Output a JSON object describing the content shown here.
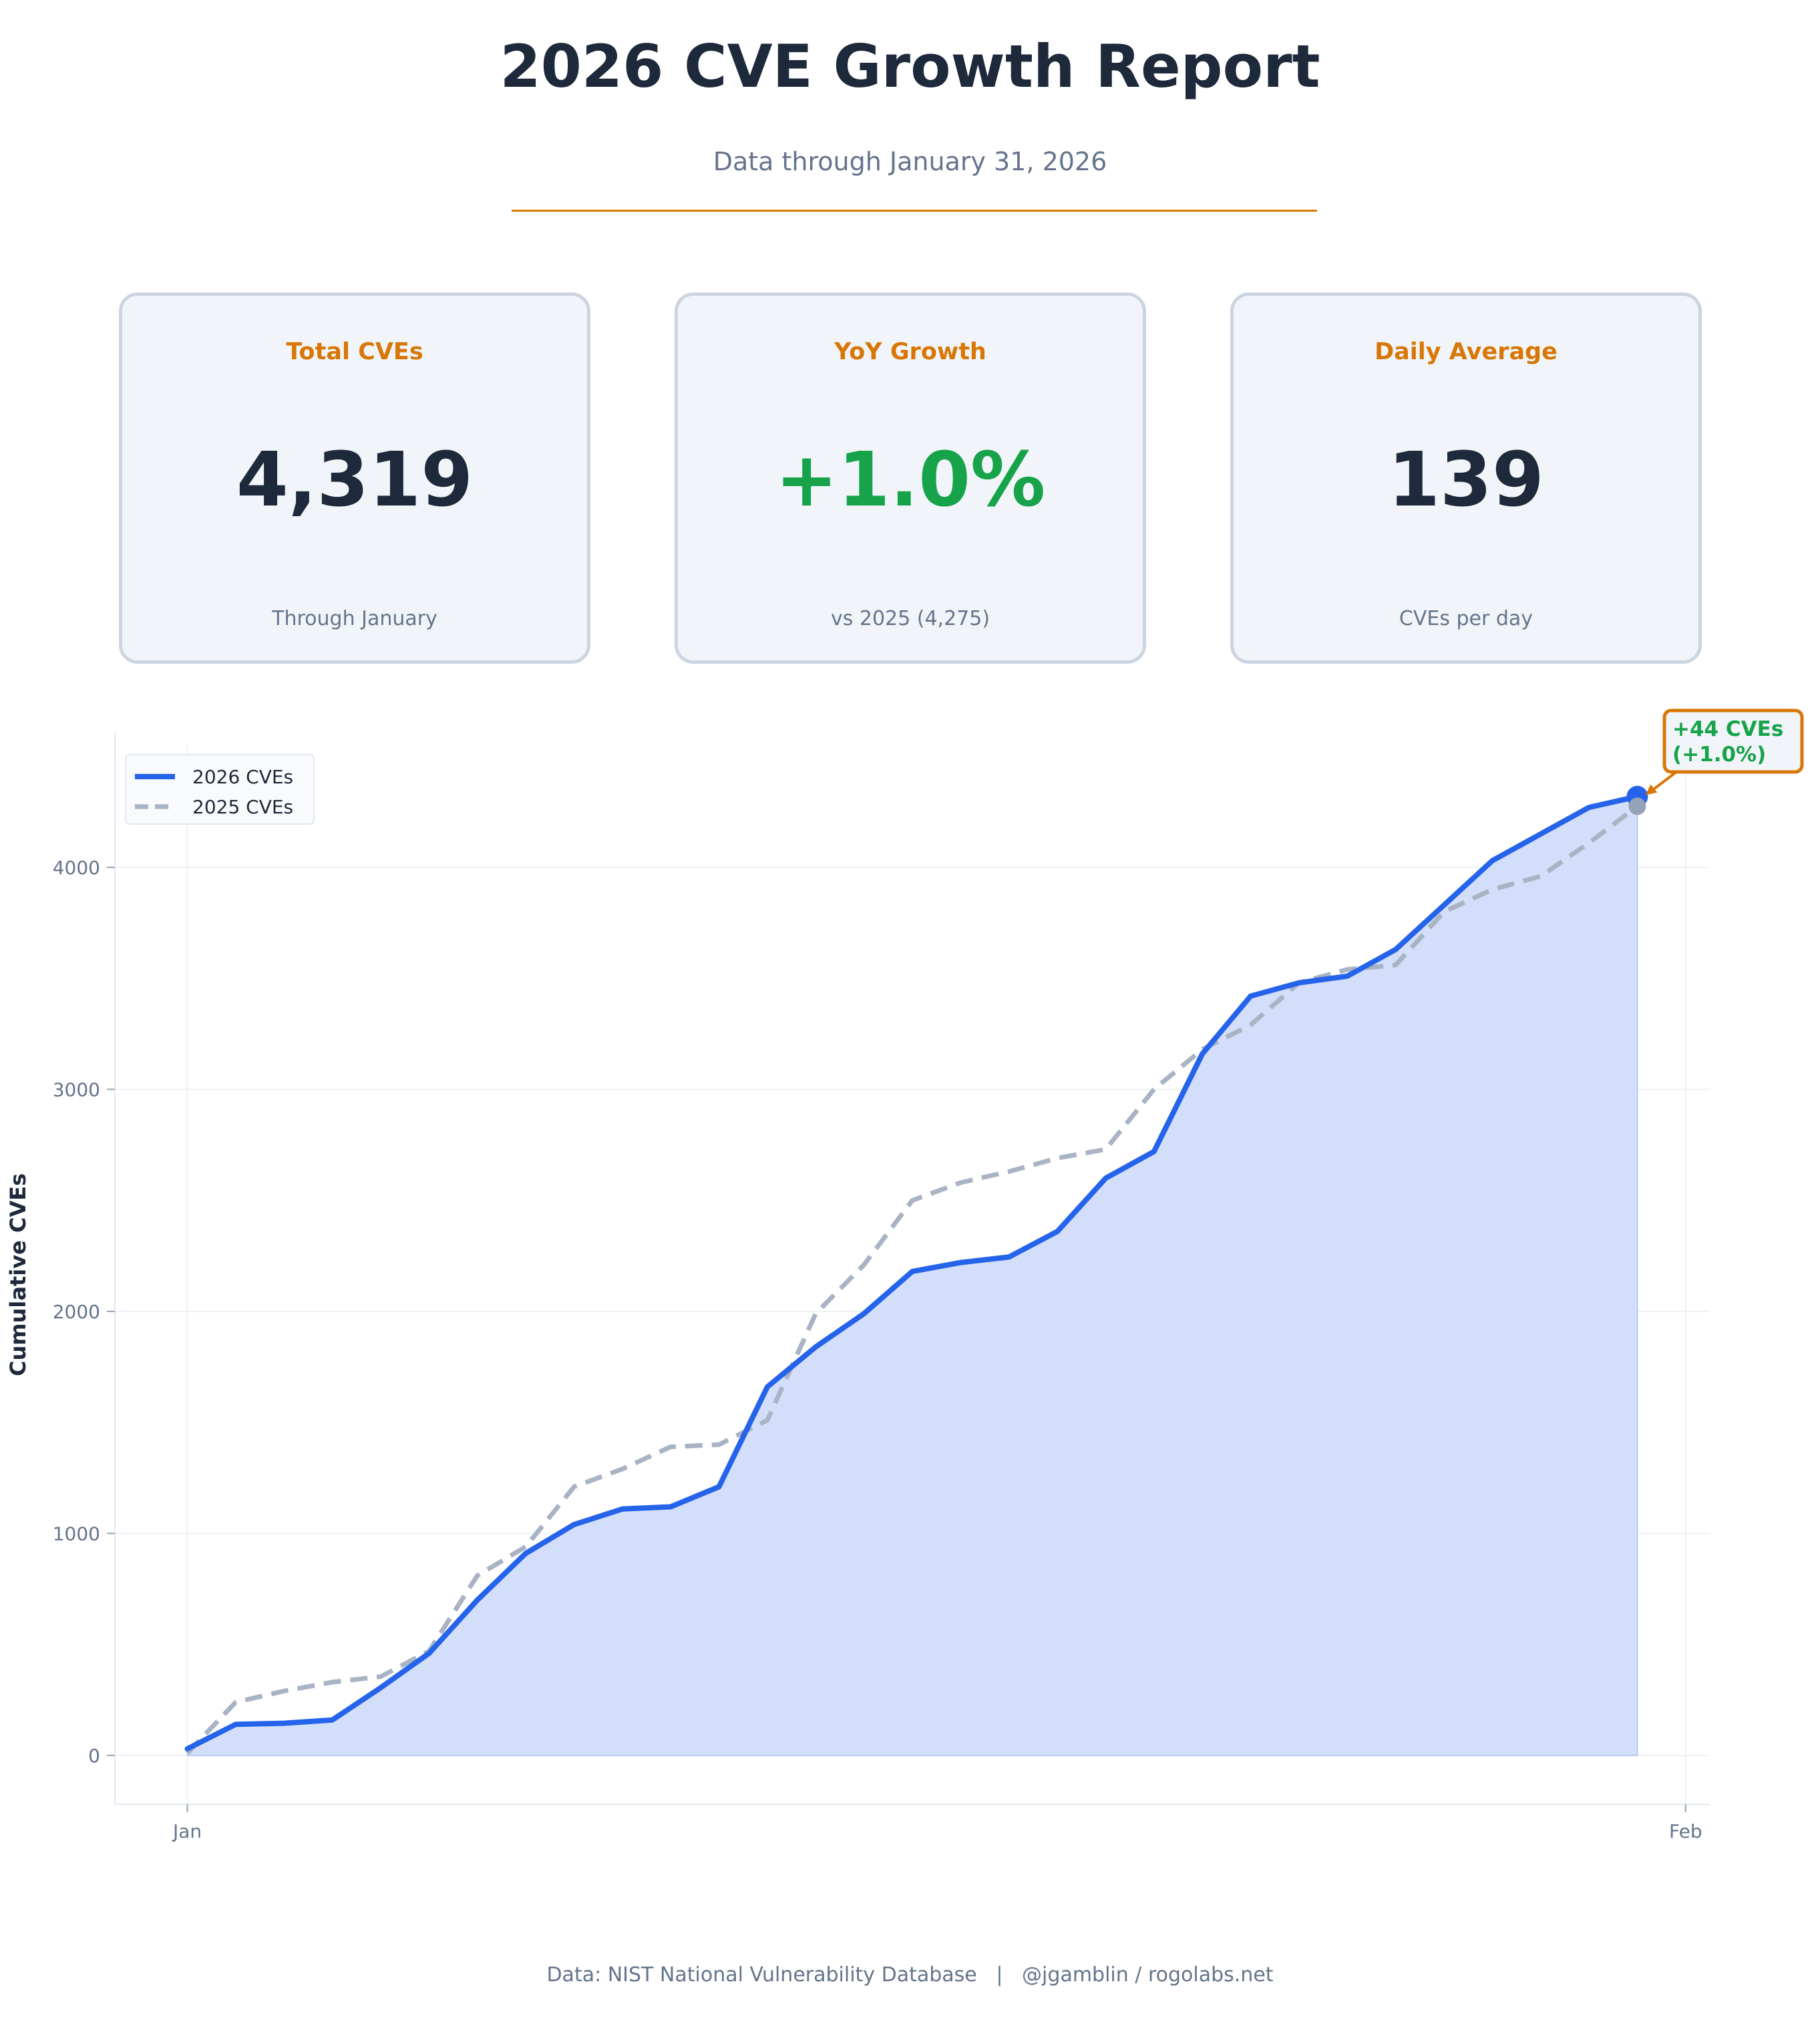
{
  "header": {
    "title": "2026 CVE Growth Report",
    "subtitle": "Data through January 31, 2026"
  },
  "cards": [
    {
      "label": "Total CVEs",
      "value": "4,319",
      "sub": "Through January",
      "value_color": "#1e293b"
    },
    {
      "label": "YoY Growth",
      "value": "+1.0%",
      "sub": "vs 2025 (4,275)",
      "value_color": "#16a34a"
    },
    {
      "label": "Daily Average",
      "value": "139",
      "sub": "CVEs per day",
      "value_color": "#1e293b"
    }
  ],
  "footer": {
    "text": "Data: NIST National Vulnerability Database   |   @jgamblin / rogolabs.net"
  },
  "colors": {
    "accent": "#d97706",
    "series_2026": "#2563eb",
    "series_2025": "#a8b3c4",
    "fill_2026": "#d3dffa",
    "positive": "#16a34a"
  },
  "chart_data": {
    "type": "line",
    "title": "",
    "xlabel": "",
    "ylabel": "Cumulative CVEs",
    "x_unit": "day of January",
    "x": [
      1,
      2,
      3,
      4,
      5,
      6,
      7,
      8,
      9,
      10,
      11,
      12,
      13,
      14,
      15,
      16,
      17,
      18,
      19,
      20,
      21,
      22,
      23,
      24,
      25,
      26,
      27,
      28,
      29,
      30,
      31
    ],
    "xticks": [
      {
        "label": "Jan",
        "day": 1
      },
      {
        "label": "Feb",
        "day": 32
      }
    ],
    "yticks": [
      0,
      1000,
      2000,
      3000,
      4000
    ],
    "ylim": [
      -220,
      4550
    ],
    "xlim": [
      -0.5,
      32.5
    ],
    "grid": true,
    "legend": {
      "position": "top-left",
      "entries": [
        "2026 CVEs",
        "2025 CVEs"
      ]
    },
    "series": [
      {
        "name": "2026 CVEs",
        "style": "solid-filled",
        "values": [
          30,
          140,
          145,
          160,
          305,
          460,
          700,
          910,
          1040,
          1110,
          1120,
          1210,
          1660,
          1840,
          1990,
          2180,
          2220,
          2245,
          2360,
          2600,
          2720,
          3160,
          3420,
          3480,
          3510,
          3630,
          3830,
          4030,
          4150,
          4270,
          4319
        ]
      },
      {
        "name": "2025 CVEs",
        "style": "dashed",
        "values": [
          10,
          240,
          290,
          330,
          355,
          470,
          810,
          940,
          1210,
          1290,
          1390,
          1400,
          1510,
          1990,
          2210,
          2500,
          2580,
          2630,
          2690,
          2730,
          3000,
          3180,
          3290,
          3480,
          3540,
          3560,
          3800,
          3900,
          3960,
          4110,
          4275
        ]
      }
    ],
    "annotation": {
      "line1": "+44 CVEs",
      "line2": "(+1.0%)",
      "target_day": 31
    }
  }
}
